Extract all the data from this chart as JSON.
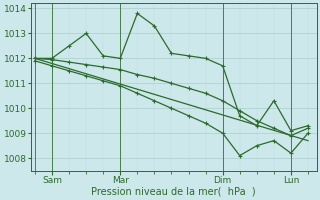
{
  "background_color": "#cce8ea",
  "grid_major_color": "#aacccc",
  "grid_minor_color": "#c0dddd",
  "line_color": "#2d6a2d",
  "xlabel": "Pression niveau de la mer(  hPa  )",
  "ylim": [
    1007.5,
    1014.2
  ],
  "yticks": [
    1008,
    1009,
    1010,
    1011,
    1012,
    1013,
    1014
  ],
  "day_labels": [
    "Sam",
    "Mar",
    "Dim",
    "Lun"
  ],
  "day_positions": [
    2,
    10,
    22,
    30
  ],
  "vline_positions": [
    0,
    2,
    10,
    22,
    30
  ],
  "xlim": [
    -0.5,
    33
  ],
  "series_jagged_x": [
    0,
    2,
    4,
    6,
    8,
    10,
    12,
    14,
    16,
    18,
    20,
    22,
    24,
    26,
    28,
    30,
    32
  ],
  "series_jagged_y": [
    1012.0,
    1012.0,
    1012.5,
    1013.0,
    1012.1,
    1012.0,
    1013.8,
    1013.3,
    1012.2,
    1012.1,
    1012.0,
    1011.7,
    1009.7,
    1009.3,
    1010.3,
    1009.1,
    1009.3
  ],
  "series_upper_x": [
    0,
    2,
    4,
    6,
    8,
    10,
    12,
    14,
    16,
    18,
    20,
    22,
    24,
    26,
    28,
    30,
    32
  ],
  "series_upper_y": [
    1012.0,
    1011.95,
    1011.85,
    1011.75,
    1011.65,
    1011.55,
    1011.35,
    1011.2,
    1011.0,
    1010.8,
    1010.6,
    1010.3,
    1009.9,
    1009.5,
    1009.2,
    1008.9,
    1009.2
  ],
  "series_lower_x": [
    0,
    2,
    4,
    6,
    8,
    10,
    12,
    14,
    16,
    18,
    20,
    22,
    24,
    26,
    28,
    30,
    32
  ],
  "series_lower_y": [
    1011.9,
    1011.7,
    1011.5,
    1011.3,
    1011.1,
    1010.9,
    1010.6,
    1010.3,
    1010.0,
    1009.7,
    1009.4,
    1009.0,
    1008.1,
    1008.5,
    1008.7,
    1008.2,
    1009.0
  ],
  "trend_x": [
    0,
    32
  ],
  "trend_y": [
    1012.0,
    1008.7
  ]
}
